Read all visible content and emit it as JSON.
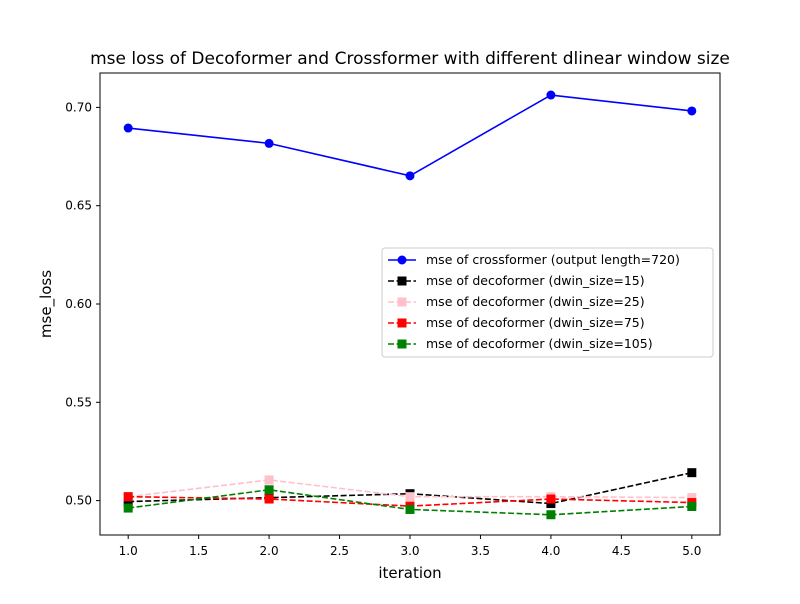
{
  "chart_data": {
    "type": "line",
    "title": "mse loss of Decoformer and Crossformer with different dlinear window size",
    "xlabel": "iteration",
    "ylabel": "mse_loss",
    "xlim": [
      0.8,
      5.2
    ],
    "ylim": [
      0.4825,
      0.7175
    ],
    "x_ticks": [
      1.0,
      1.5,
      2.0,
      2.5,
      3.0,
      3.5,
      4.0,
      4.5,
      5.0
    ],
    "x_tick_labels": [
      "1.0",
      "1.5",
      "2.0",
      "2.5",
      "3.0",
      "3.5",
      "4.0",
      "4.5",
      "5.0"
    ],
    "y_ticks": [
      0.5,
      0.55,
      0.6,
      0.65,
      0.7
    ],
    "y_tick_labels": [
      "0.50",
      "0.55",
      "0.60",
      "0.65",
      "0.70"
    ],
    "grid": false,
    "legend_position": "center-right",
    "x": [
      1,
      2,
      3,
      4,
      5
    ],
    "series": [
      {
        "name": "mse of crossformer (output length=720)",
        "values": [
          0.6895,
          0.6817,
          0.6652,
          0.7063,
          0.6982
        ],
        "color": "#0000ff",
        "dash": "solid",
        "marker": "circle"
      },
      {
        "name": "mse of decoformer (dwin_size=15)",
        "values": [
          0.4995,
          0.5015,
          0.5035,
          0.4985,
          0.5142
        ],
        "color": "#000000",
        "dash": "dashed",
        "marker": "square"
      },
      {
        "name": "mse of decoformer (dwin_size=25)",
        "values": [
          0.502,
          0.5105,
          0.502,
          0.502,
          0.5015
        ],
        "color": "#ffc0cb",
        "dash": "dashed",
        "marker": "square"
      },
      {
        "name": "mse of decoformer (dwin_size=75)",
        "values": [
          0.502,
          0.5008,
          0.4972,
          0.5008,
          0.499
        ],
        "color": "#ff0000",
        "dash": "dashed",
        "marker": "square"
      },
      {
        "name": "mse of decoformer (dwin_size=105)",
        "values": [
          0.4962,
          0.5055,
          0.4955,
          0.4928,
          0.497
        ],
        "color": "#008000",
        "dash": "dashed",
        "marker": "square"
      }
    ]
  }
}
